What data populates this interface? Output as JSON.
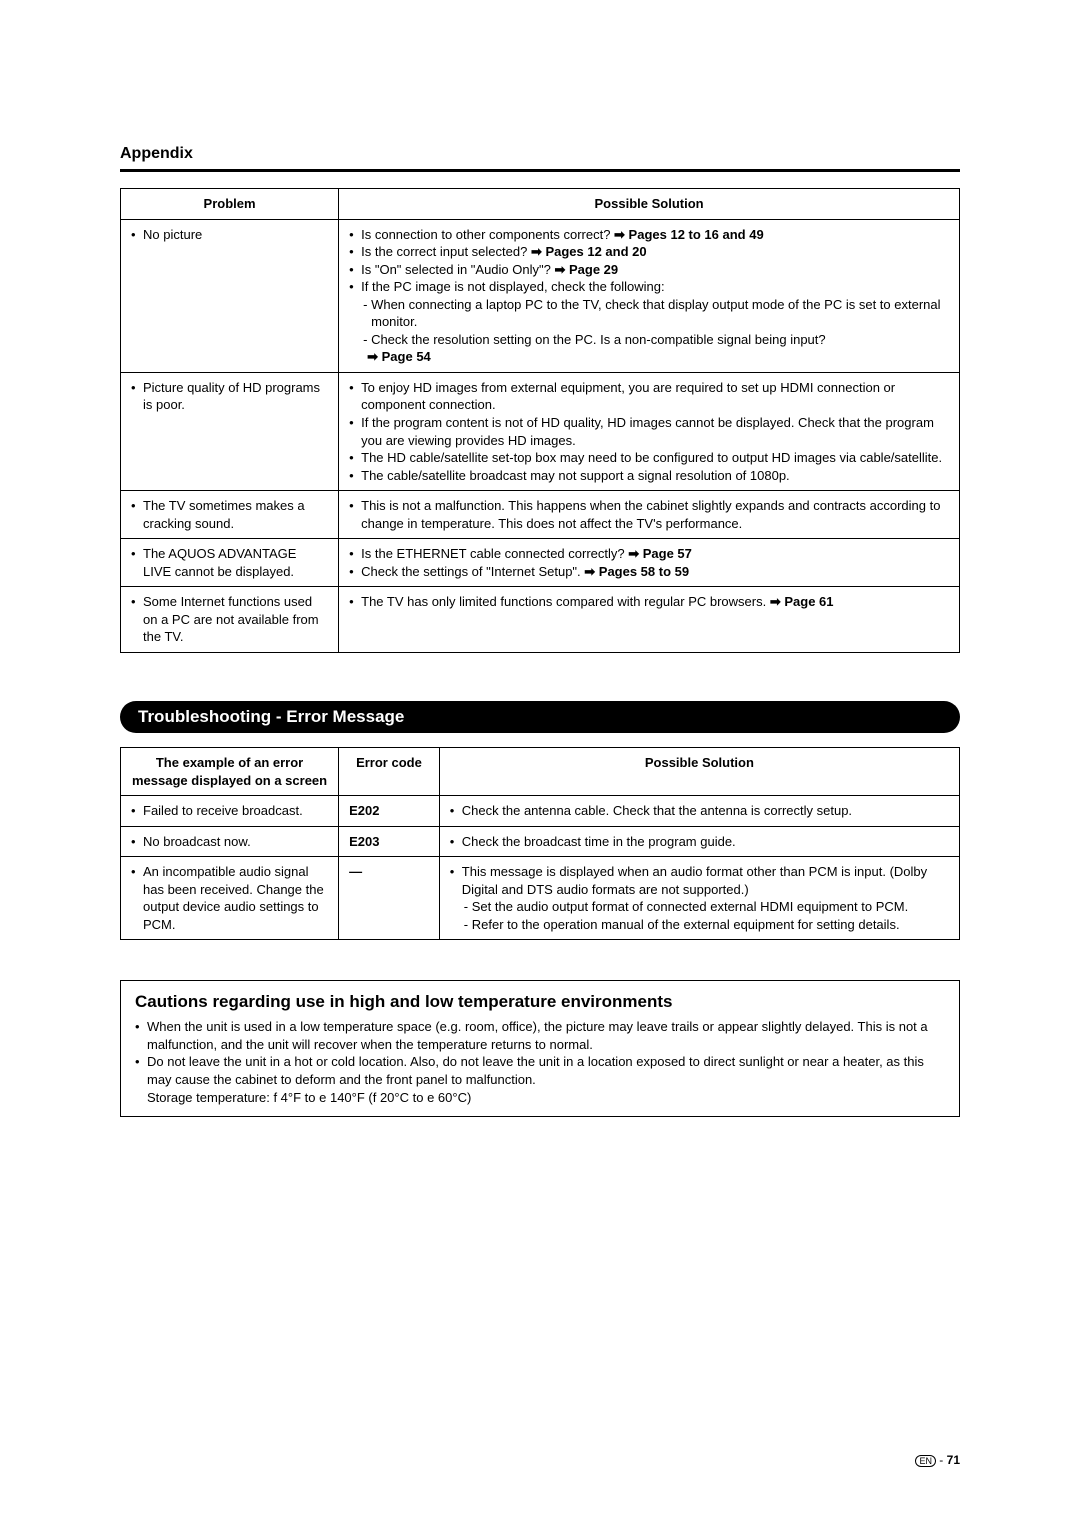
{
  "appendix": {
    "title": "Appendix",
    "table": {
      "headers": {
        "problem": "Problem",
        "solution": "Possible Solution"
      },
      "rows": [
        {
          "problem": "No picture",
          "l1": "Is connection to other components correct? ",
          "l1b": "➡ Pages 12 to 16 and 49",
          "l2": "Is the correct input selected? ",
          "l2b": "➡ Pages 12 and 20",
          "l3": "Is \"On\" selected in \"Audio Only\"? ",
          "l3b": "➡ Page 29",
          "l4": "If the PC image is not displayed, check the following:",
          "l5": "- When connecting a laptop PC to the TV, check that display output mode of the PC is set to external monitor.",
          "l6": "- Check the resolution setting on the PC. Is a non-compatible signal being input?",
          "l7": "➡ Page 54"
        },
        {
          "problem": "Picture quality of HD programs is poor.",
          "l1": "To enjoy HD images from external equipment, you are required to set up HDMI connection or component connection.",
          "l2": "If the program content is not of HD quality, HD images cannot be displayed. Check that the program you are viewing provides HD images.",
          "l3": "The HD cable/satellite set-top box may need to be configured to output HD images via cable/satellite.",
          "l4": "The cable/satellite broadcast may not support a signal resolution of 1080p."
        },
        {
          "problem": "The TV sometimes makes a cracking sound.",
          "l1": "This is not a malfunction. This happens when the cabinet slightly expands and contracts according to change in temperature. This does not affect the TV's performance."
        },
        {
          "problem": "The AQUOS ADVANTAGE LIVE cannot be displayed.",
          "l1": "Is the ETHERNET cable connected correctly? ",
          "l1b": "➡ Page 57",
          "l2": "Check the settings of \"Internet Setup\".  ",
          "l2b": "➡ Pages 58 to 59"
        },
        {
          "problem": "Some Internet functions used on a PC are not available from the TV.",
          "l1": "The TV has only limited functions compared with regular PC browsers.  ",
          "l1b": "➡ Page 61"
        }
      ]
    }
  },
  "error": {
    "heading": "Troubleshooting - Error Message",
    "headers": {
      "msg": "The example of an error message displayed on a screen",
      "code": "Error code",
      "solution": "Possible Solution"
    },
    "rows": [
      {
        "msg": "Failed to receive broadcast.",
        "code": "E202",
        "sol": "Check the antenna cable. Check that the antenna is correctly setup."
      },
      {
        "msg": "No broadcast now.",
        "code": "E203",
        "sol": "Check the broadcast time in the program guide."
      },
      {
        "msg": "An incompatible audio signal has been received. Change the output device audio settings to PCM.",
        "code": "—",
        "sol1": "This message is displayed when an audio format other than PCM is input. (Dolby Digital and DTS audio formats are not supported.)",
        "sol2": "- Set the audio output format of connected external HDMI equipment to PCM.",
        "sol3": "- Refer to the operation manual of the external equipment for setting details."
      }
    ]
  },
  "caution": {
    "title": "Cautions regarding use in high and low temperature environments",
    "b1": "When the unit is used in a low temperature space (e.g. room, office), the picture may leave trails or appear slightly delayed. This is not a malfunction, and the unit will recover when the temperature returns to normal.",
    "b2": "Do not leave the unit in a hot or cold location. Also, do not leave the unit in a location exposed to direct sunlight or near a heater, as this may cause the cabinet to deform and the front panel to malfunction.",
    "b3": "Storage temperature: f  4°F to e  140°F (f  20°C to e  60°C)"
  },
  "footer": {
    "lang": "EN",
    "sep": " - ",
    "page": "71"
  }
}
